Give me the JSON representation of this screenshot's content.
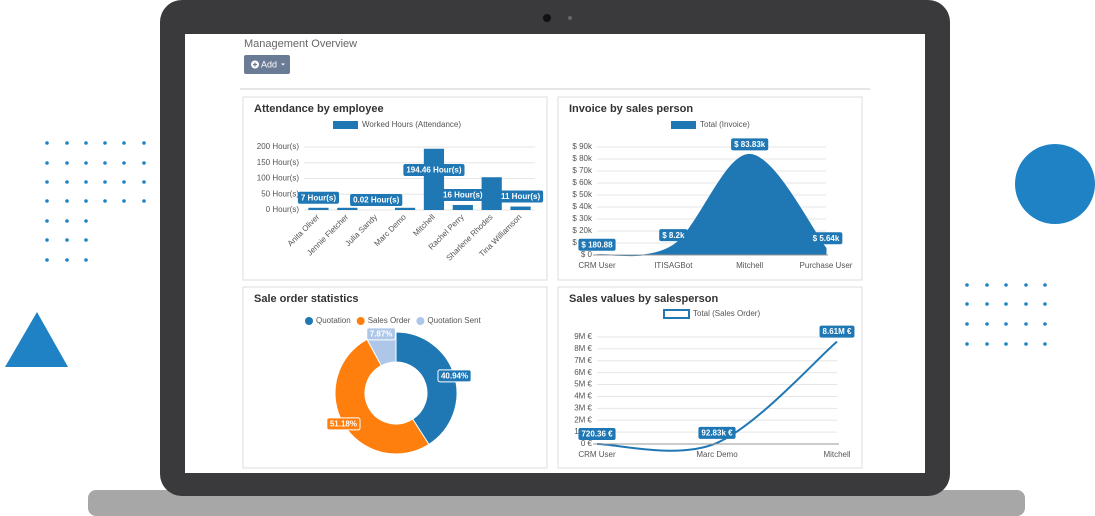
{
  "header": {
    "title": "Management Overview",
    "button": "Add"
  },
  "chart_data": [
    {
      "type": "bar",
      "title": "Attendance by employee",
      "categories": [
        "Anita Oliver",
        "Jennie Fletcher",
        "Julia Sandy",
        "Marc Demo",
        "Mitchell",
        "Rachel Perry",
        "Sharlene Rhodes",
        "Tina Williamson"
      ],
      "series": [
        {
          "name": "Worked Hours (Attendance)",
          "color": "#1f77b4",
          "values": [
            7,
            7,
            0.02,
            7,
            194.46,
            16,
            104,
            11
          ],
          "value_labels": [
            "7 Hour(s)",
            null,
            "0.02 Hour(s)",
            null,
            "194.46 Hour(s)",
            "16 Hour(s)",
            null,
            "11 Hour(s)"
          ]
        }
      ],
      "ylim": [
        0,
        200
      ],
      "yticks": [
        {
          "value": 0,
          "label": "0 Hour(s)"
        },
        {
          "value": 50,
          "label": "50 Hour(s)"
        },
        {
          "value": 100,
          "label": "100 Hour(s)"
        },
        {
          "value": 150,
          "label": "150 Hour(s)"
        },
        {
          "value": 200,
          "label": "200 Hour(s)"
        }
      ],
      "grid": true
    },
    {
      "type": "area",
      "title": "Invoice by sales person",
      "categories": [
        "CRM User",
        "ITISAGBot",
        "Mitchell",
        "Purchase User"
      ],
      "series": [
        {
          "name": "Total (Invoice)",
          "color": "#1f77b4",
          "values": [
            180.88,
            8200,
            83830,
            5640
          ],
          "value_labels": [
            "$ 180.88",
            "$ 8.2k",
            "$ 83.83k",
            "$ 5.64k"
          ]
        }
      ],
      "ylim": [
        0,
        90000
      ],
      "yticks": [
        {
          "value": 0,
          "label": "$ 0"
        },
        {
          "value": 10000,
          "label": "$ 10k"
        },
        {
          "value": 20000,
          "label": "$ 20k"
        },
        {
          "value": 30000,
          "label": "$ 30k"
        },
        {
          "value": 40000,
          "label": "$ 40k"
        },
        {
          "value": 50000,
          "label": "$ 50k"
        },
        {
          "value": 60000,
          "label": "$ 60k"
        },
        {
          "value": 70000,
          "label": "$ 70k"
        },
        {
          "value": 80000,
          "label": "$ 80k"
        },
        {
          "value": 90000,
          "label": "$ 90k"
        }
      ],
      "grid": true
    },
    {
      "type": "doughnut",
      "title": "Sale order statistics",
      "categories": [
        "Quotation",
        "Sales Order",
        "Quotation Sent"
      ],
      "values": [
        40.94,
        51.18,
        7.87
      ],
      "value_labels": [
        "40.94%",
        "51.18%",
        "7.87%"
      ],
      "colors": [
        "#1f77b4",
        "#ff7f0e",
        "#aec7e8"
      ]
    },
    {
      "type": "line",
      "title": "Sales values by salesperson",
      "categories": [
        "CRM User",
        "Marc Demo",
        "Mitchell"
      ],
      "series": [
        {
          "name": "Total (Sales Order)",
          "color": "#1f77b4",
          "values": [
            720.36,
            92830,
            8610000
          ],
          "value_labels": [
            "720.36 €",
            "92.83k €",
            "8.61M €"
          ]
        }
      ],
      "ylim": [
        0,
        9000000
      ],
      "yticks": [
        {
          "value": 0,
          "label": "0 €"
        },
        {
          "value": 1000000,
          "label": "1M €"
        },
        {
          "value": 2000000,
          "label": "2M €"
        },
        {
          "value": 3000000,
          "label": "3M €"
        },
        {
          "value": 4000000,
          "label": "4M €"
        },
        {
          "value": 5000000,
          "label": "5M €"
        },
        {
          "value": 6000000,
          "label": "6M €"
        },
        {
          "value": 7000000,
          "label": "7M €"
        },
        {
          "value": 8000000,
          "label": "8M €"
        },
        {
          "value": 9000000,
          "label": "9M €"
        }
      ],
      "grid": true
    }
  ]
}
